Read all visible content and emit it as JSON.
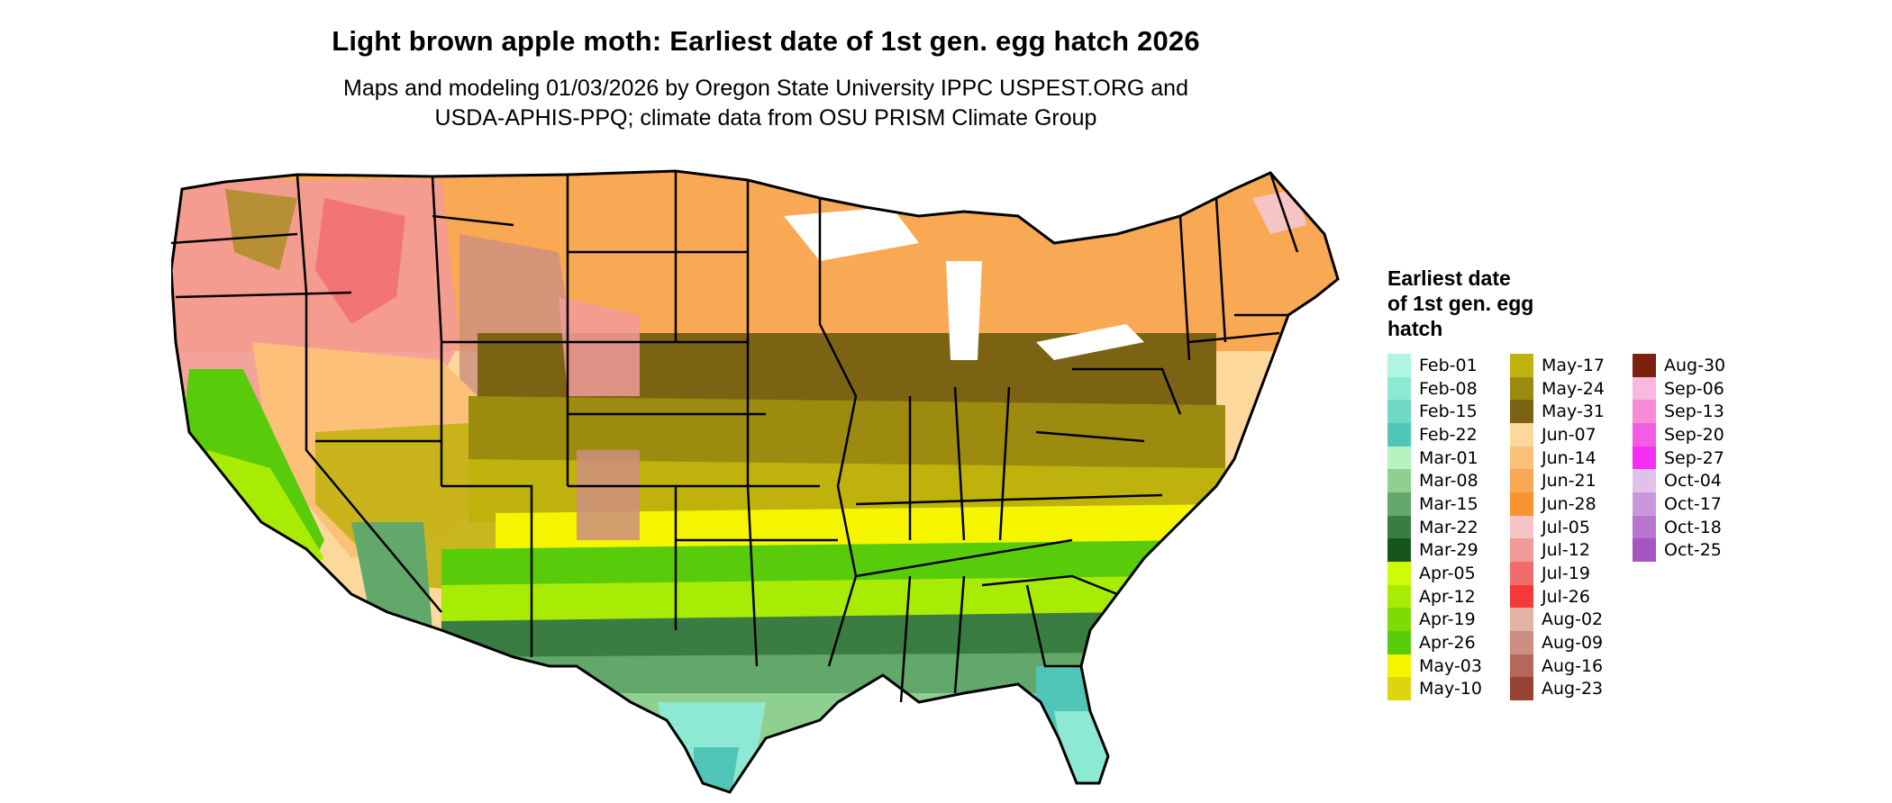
{
  "title": "Light brown apple moth: Earliest date of 1st gen. egg hatch 2026",
  "subtitle_line1": "Maps and modeling 01/03/2026 by Oregon State University IPPC USPEST.ORG and",
  "subtitle_line2": "USDA-APHIS-PPQ; climate data from OSU PRISM Climate Group",
  "legend": {
    "title": "Earliest date\nof 1st gen. egg\nhatch",
    "items": [
      {
        "label": "Feb-01",
        "color": "#aef5e2"
      },
      {
        "label": "Feb-08",
        "color": "#8ee9d4"
      },
      {
        "label": "Feb-15",
        "color": "#6fd9c6"
      },
      {
        "label": "Feb-22",
        "color": "#4fc6b8"
      },
      {
        "label": "Mar-01",
        "color": "#b8f2c0"
      },
      {
        "label": "Mar-08",
        "color": "#8fcf90"
      },
      {
        "label": "Mar-15",
        "color": "#62a86a"
      },
      {
        "label": "Mar-22",
        "color": "#3a7d42"
      },
      {
        "label": "Mar-29",
        "color": "#16561c"
      },
      {
        "label": "Apr-05",
        "color": "#cdfb08"
      },
      {
        "label": "Apr-12",
        "color": "#a8ec06"
      },
      {
        "label": "Apr-19",
        "color": "#7fdb06"
      },
      {
        "label": "Apr-26",
        "color": "#58cc0a"
      },
      {
        "label": "May-03",
        "color": "#f5f500"
      },
      {
        "label": "May-10",
        "color": "#ddd510"
      },
      {
        "label": "May-17",
        "color": "#bfb20c"
      },
      {
        "label": "May-24",
        "color": "#9c8b0f"
      },
      {
        "label": "May-31",
        "color": "#7c6314"
      },
      {
        "label": "Jun-07",
        "color": "#fcd89c"
      },
      {
        "label": "Jun-14",
        "color": "#fcc078"
      },
      {
        "label": "Jun-21",
        "color": "#f9a854"
      },
      {
        "label": "Jun-28",
        "color": "#f89330"
      },
      {
        "label": "Jul-05",
        "color": "#f5c4c4"
      },
      {
        "label": "Jul-12",
        "color": "#f29a9a"
      },
      {
        "label": "Jul-19",
        "color": "#f26c6c"
      },
      {
        "label": "Jul-26",
        "color": "#f53838"
      },
      {
        "label": "Aug-02",
        "color": "#e2b4a6"
      },
      {
        "label": "Aug-09",
        "color": "#cc8e80"
      },
      {
        "label": "Aug-16",
        "color": "#b3685a"
      },
      {
        "label": "Aug-23",
        "color": "#984434"
      },
      {
        "label": "Aug-30",
        "color": "#7d2010"
      },
      {
        "label": "Sep-06",
        "color": "#f9b8e0"
      },
      {
        "label": "Sep-13",
        "color": "#f98ad6"
      },
      {
        "label": "Sep-20",
        "color": "#f55ce6"
      },
      {
        "label": "Sep-27",
        "color": "#f52ef5"
      },
      {
        "label": "Oct-04",
        "color": "#e0c2e8"
      },
      {
        "label": "Oct-17",
        "color": "#c998dc"
      },
      {
        "label": "Oct-18",
        "color": "#b876cf"
      },
      {
        "label": "Oct-25",
        "color": "#a654c0"
      }
    ]
  }
}
